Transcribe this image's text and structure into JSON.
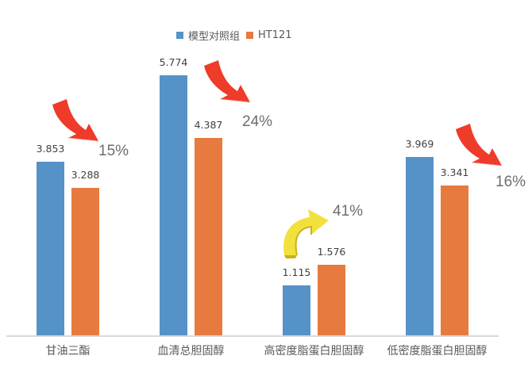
{
  "chart_data": {
    "type": "bar",
    "title": "",
    "xlabel": "",
    "ylabel": "",
    "grid": false,
    "legend_position": "top",
    "categories": [
      "甘油三酯",
      "血清总胆固醇",
      "高密度脂蛋白胆固醇",
      "低密度脂蛋白胆固醇"
    ],
    "series": [
      {
        "name": "模型对照组",
        "color": "#5592c8",
        "values": [
          3.853,
          5.774,
          1.115,
          3.969
        ]
      },
      {
        "name": "HT121",
        "color": "#e67a3f",
        "values": [
          3.288,
          4.387,
          1.576,
          3.341
        ]
      }
    ],
    "annotations": [
      {
        "category": "甘油三酯",
        "text": "15%",
        "direction": "down",
        "color": "#ee3b2a"
      },
      {
        "category": "血清总胆固醇",
        "text": "24%",
        "direction": "down",
        "color": "#ee3b2a"
      },
      {
        "category": "高密度脂蛋白胆固醇",
        "text": "41%",
        "direction": "up",
        "color": "#f2e03c"
      },
      {
        "category": "低密度脂蛋白胆固醇",
        "text": "16%",
        "direction": "down",
        "color": "#ee3b2a"
      }
    ],
    "value_labels": [
      [
        "3.853",
        "3.288"
      ],
      [
        "5.774",
        "4.387"
      ],
      [
        "1.115",
        "1.576"
      ],
      [
        "3.969",
        "3.341"
      ]
    ]
  },
  "legend": {
    "items": [
      {
        "label": "模型对照组",
        "color": "#5592c8"
      },
      {
        "label": "HT121",
        "color": "#e67a3f"
      }
    ]
  }
}
